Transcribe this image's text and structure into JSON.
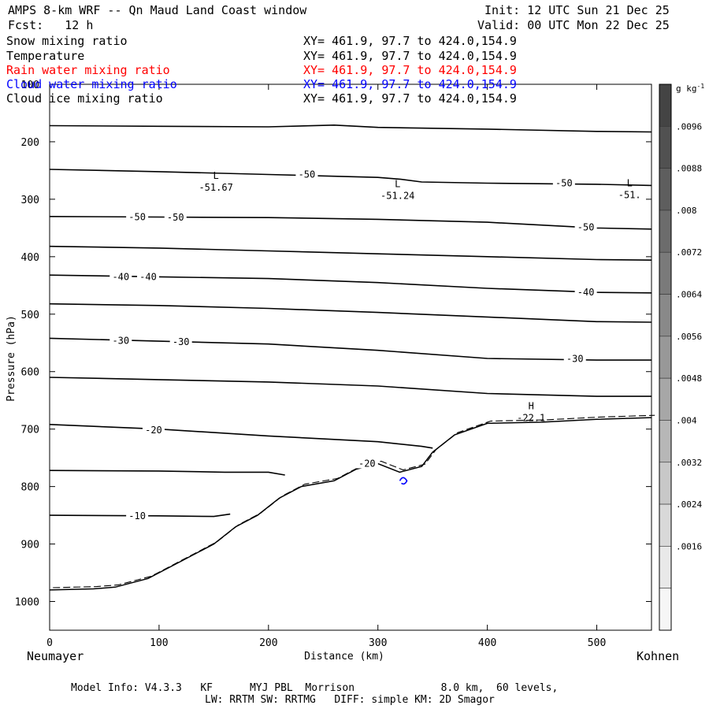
{
  "header": {
    "title": "AMPS 8-km WRF -- Qn Maud Land Coast window",
    "init": "Init: 12 UTC Sun 21 Dec 25",
    "fcst": "Fcst:   12 h",
    "valid": "Valid: 00 UTC Mon 22 Dec 25"
  },
  "fields": [
    {
      "name": "Snow mixing ratio",
      "xy": "XY= 461.9, 97.7 to 424.0,154.9",
      "color": "#000000"
    },
    {
      "name": "Temperature",
      "xy": "XY= 461.9, 97.7 to 424.0,154.9",
      "color": "#000000"
    },
    {
      "name": "Rain water mixing ratio",
      "xy": "XY= 461.9, 97.7 to 424.0,154.9",
      "color": "#ff0000"
    },
    {
      "name": "Cloud water mixing ratio",
      "xy": "XY= 461.9, 97.7 to 424.0,154.9",
      "color": "#0000ff"
    },
    {
      "name": "Cloud ice mixing ratio",
      "xy": "XY= 461.9, 97.7 to 424.0,154.9",
      "color": "#000000"
    }
  ],
  "endpoints": {
    "left": "Neumayer",
    "right": "Kohnen"
  },
  "footer": {
    "line1": "Model Info: V4.3.3   KF      MYJ PBL  Morrison              8.0 km,  60 levels,",
    "line2": "LW: RRTM SW: RRTMG   DIFF: simple KM: 2D Smagor"
  },
  "chart_data": {
    "type": "contour-cross-section",
    "xlabel": "Distance (km)",
    "ylabel": "Pressure (hPa)",
    "xlim": [
      0,
      550
    ],
    "ylim": [
      1050,
      100
    ],
    "x_ticks": [
      0,
      100,
      200,
      300,
      400,
      500
    ],
    "y_ticks": [
      100,
      200,
      300,
      400,
      500,
      600,
      700,
      800,
      900,
      1000
    ],
    "colorbar": {
      "unit_prefix": "g kg",
      "unit_sup": "-1",
      "labels": [
        ".0096",
        ".0088",
        ".008",
        ".0072",
        ".0064",
        ".0056",
        ".0048",
        ".004",
        ".0032",
        ".0024",
        ".0016"
      ],
      "colors": [
        "#444444",
        "#515151",
        "#5e5e5e",
        "#6c6c6c",
        "#7a7a7a",
        "#898989",
        "#989898",
        "#a7a7a7",
        "#b7b7b7",
        "#c8c8c8",
        "#d9d9d9",
        "#e9e9e9",
        "#f6f6f6"
      ]
    },
    "isotherms": [
      {
        "pts": [
          [
            0,
            172
          ],
          [
            100,
            173
          ],
          [
            200,
            174
          ],
          [
            260,
            171
          ],
          [
            300,
            175
          ],
          [
            400,
            178
          ],
          [
            500,
            182
          ],
          [
            550,
            183
          ]
        ]
      },
      {
        "pts": [
          [
            0,
            248
          ],
          [
            100,
            252
          ],
          [
            200,
            257
          ],
          [
            300,
            262
          ],
          [
            320,
            265
          ],
          [
            340,
            270
          ],
          [
            400,
            272
          ],
          [
            500,
            274
          ],
          [
            550,
            276
          ]
        ]
      },
      {
        "pts": [
          [
            0,
            330
          ],
          [
            100,
            331
          ],
          [
            200,
            332
          ],
          [
            300,
            335
          ],
          [
            400,
            340
          ],
          [
            500,
            350
          ],
          [
            550,
            352
          ]
        ]
      },
      {
        "pts": [
          [
            0,
            382
          ],
          [
            100,
            385
          ],
          [
            200,
            390
          ],
          [
            300,
            395
          ],
          [
            400,
            400
          ],
          [
            500,
            405
          ],
          [
            550,
            406
          ]
        ]
      },
      {
        "pts": [
          [
            0,
            432
          ],
          [
            100,
            435
          ],
          [
            200,
            438
          ],
          [
            300,
            445
          ],
          [
            400,
            455
          ],
          [
            500,
            462
          ],
          [
            550,
            463
          ]
        ]
      },
      {
        "pts": [
          [
            0,
            482
          ],
          [
            100,
            485
          ],
          [
            200,
            490
          ],
          [
            300,
            497
          ],
          [
            400,
            505
          ],
          [
            500,
            513
          ],
          [
            550,
            514
          ]
        ]
      },
      {
        "pts": [
          [
            0,
            542
          ],
          [
            100,
            547
          ],
          [
            200,
            552
          ],
          [
            300,
            563
          ],
          [
            400,
            577
          ],
          [
            500,
            580
          ],
          [
            550,
            580
          ]
        ]
      },
      {
        "pts": [
          [
            0,
            610
          ],
          [
            100,
            614
          ],
          [
            200,
            618
          ],
          [
            300,
            625
          ],
          [
            400,
            638
          ],
          [
            500,
            643
          ],
          [
            550,
            643
          ]
        ]
      },
      {
        "pts": [
          [
            0,
            692
          ],
          [
            100,
            700
          ],
          [
            200,
            712
          ],
          [
            300,
            722
          ],
          [
            340,
            730
          ],
          [
            350,
            733
          ]
        ]
      },
      {
        "pts": [
          [
            0,
            772
          ],
          [
            100,
            773
          ],
          [
            160,
            775
          ],
          [
            200,
            775
          ],
          [
            215,
            780
          ]
        ]
      },
      {
        "pts": [
          [
            0,
            850
          ],
          [
            100,
            851
          ],
          [
            150,
            852
          ],
          [
            165,
            848
          ]
        ]
      }
    ],
    "terrain": [
      [
        0,
        980
      ],
      [
        40,
        978
      ],
      [
        60,
        975
      ],
      [
        90,
        960
      ],
      [
        120,
        930
      ],
      [
        150,
        900
      ],
      [
        170,
        870
      ],
      [
        190,
        850
      ],
      [
        210,
        820
      ],
      [
        230,
        800
      ],
      [
        260,
        790
      ],
      [
        280,
        770
      ],
      [
        300,
        760
      ],
      [
        320,
        775
      ],
      [
        340,
        765
      ],
      [
        350,
        740
      ],
      [
        370,
        710
      ],
      [
        400,
        690
      ],
      [
        450,
        688
      ],
      [
        500,
        683
      ],
      [
        550,
        680
      ]
    ],
    "contour_labels": [
      {
        "text": "-50",
        "x": 235,
        "p": 257
      },
      {
        "text": "-50",
        "x": 470,
        "p": 272
      },
      {
        "text": "-50",
        "x": 80,
        "p": 331
      },
      {
        "text": "-50",
        "x": 115,
        "p": 332
      },
      {
        "text": "-50",
        "x": 490,
        "p": 349
      },
      {
        "text": "-40",
        "x": 65,
        "p": 435
      },
      {
        "text": "-40",
        "x": 90,
        "p": 435
      },
      {
        "text": "-40",
        "x": 490,
        "p": 462
      },
      {
        "text": "-30",
        "x": 65,
        "p": 546
      },
      {
        "text": "-30",
        "x": 120,
        "p": 548
      },
      {
        "text": "-30",
        "x": 480,
        "p": 578
      },
      {
        "text": "-20",
        "x": 95,
        "p": 702
      },
      {
        "text": "-20",
        "x": 290,
        "p": 760
      },
      {
        "text": "-10",
        "x": 80,
        "p": 851
      }
    ],
    "extrema": [
      {
        "mark": "L",
        "value": "-51.67",
        "x": 152,
        "p": 284
      },
      {
        "mark": "L",
        "value": "-51.24",
        "x": 318,
        "p": 298
      },
      {
        "mark": "L",
        "value": "-51.",
        "x": 530,
        "p": 297
      },
      {
        "mark": "H",
        "value": "-22.1",
        "x": 440,
        "p": 685
      }
    ]
  }
}
